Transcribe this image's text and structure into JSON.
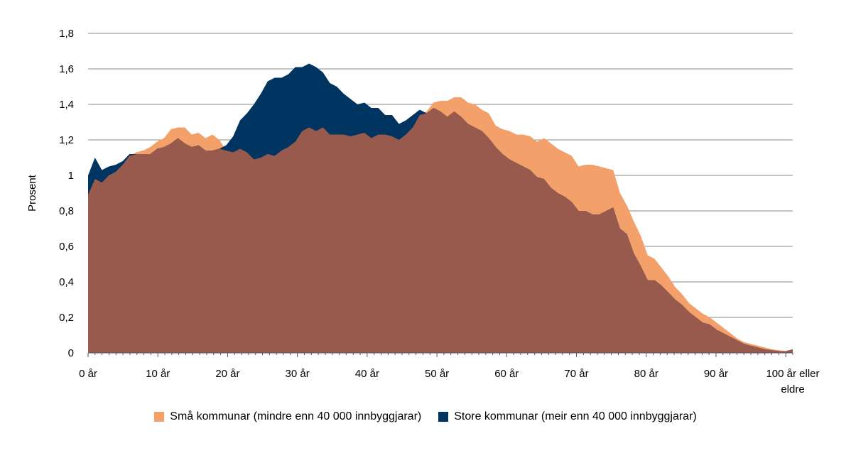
{
  "chart_data": {
    "type": "area",
    "ylabel": "Prosent",
    "xlabel": "",
    "ylim": [
      0,
      1.8
    ],
    "yticks": [
      "0",
      "0,2",
      "0,4",
      "0,6",
      "0,8",
      "1",
      "1,2",
      "1,4",
      "1,6",
      "1,8"
    ],
    "yticks_values": [
      0,
      0.2,
      0.4,
      0.6,
      0.8,
      1.0,
      1.2,
      1.4,
      1.6,
      1.8
    ],
    "xticks": [
      {
        "x": 0,
        "label": "0 år"
      },
      {
        "x": 10,
        "label": "10 år"
      },
      {
        "x": 20,
        "label": "20 år"
      },
      {
        "x": 30,
        "label": "30 år"
      },
      {
        "x": 40,
        "label": "40 år"
      },
      {
        "x": 50,
        "label": "50 år"
      },
      {
        "x": 60,
        "label": "60 år"
      },
      {
        "x": 70,
        "label": "70 år"
      },
      {
        "x": 80,
        "label": "80 år"
      },
      {
        "x": 90,
        "label": "90 år"
      },
      {
        "x": 101,
        "label": "100 år eller eldre"
      }
    ],
    "xlim": [
      0,
      101
    ],
    "grid": true,
    "legend_position": "bottom",
    "colors": {
      "small": "#f4a06a",
      "large": "#003461",
      "overlap": "#975a4c"
    },
    "series": [
      {
        "name": "Små kommunar (mindre enn 40 000 innbyggjarar)",
        "color": "#f4a06a",
        "values": [
          0.89,
          0.98,
          0.96,
          1.0,
          1.02,
          1.06,
          1.11,
          1.13,
          1.14,
          1.16,
          1.19,
          1.21,
          1.26,
          1.27,
          1.27,
          1.23,
          1.24,
          1.21,
          1.23,
          1.2,
          1.14,
          1.13,
          1.15,
          1.13,
          1.09,
          1.1,
          1.12,
          1.11,
          1.14,
          1.16,
          1.19,
          1.25,
          1.27,
          1.25,
          1.27,
          1.23,
          1.23,
          1.23,
          1.22,
          1.23,
          1.24,
          1.21,
          1.23,
          1.23,
          1.22,
          1.2,
          1.23,
          1.27,
          1.34,
          1.36,
          1.41,
          1.42,
          1.42,
          1.44,
          1.44,
          1.41,
          1.4,
          1.37,
          1.35,
          1.28,
          1.26,
          1.25,
          1.23,
          1.23,
          1.22,
          1.19,
          1.21,
          1.18,
          1.15,
          1.13,
          1.11,
          1.05,
          1.06,
          1.06,
          1.05,
          1.04,
          1.03,
          0.9,
          0.83,
          0.74,
          0.66,
          0.55,
          0.53,
          0.48,
          0.43,
          0.37,
          0.33,
          0.28,
          0.25,
          0.22,
          0.2,
          0.17,
          0.14,
          0.11,
          0.08,
          0.06,
          0.05,
          0.04,
          0.03,
          0.02,
          0.015,
          0.01,
          0.02
        ]
      },
      {
        "name": "Store kommunar (meir enn 40 000 innbyggjarar)",
        "color": "#003461",
        "values": [
          1.0,
          1.1,
          1.03,
          1.05,
          1.06,
          1.08,
          1.12,
          1.12,
          1.12,
          1.12,
          1.15,
          1.16,
          1.18,
          1.21,
          1.18,
          1.16,
          1.17,
          1.14,
          1.14,
          1.15,
          1.17,
          1.22,
          1.31,
          1.35,
          1.4,
          1.46,
          1.53,
          1.55,
          1.55,
          1.57,
          1.61,
          1.61,
          1.63,
          1.61,
          1.58,
          1.52,
          1.5,
          1.46,
          1.43,
          1.4,
          1.41,
          1.38,
          1.38,
          1.34,
          1.34,
          1.29,
          1.31,
          1.34,
          1.37,
          1.35,
          1.38,
          1.36,
          1.33,
          1.36,
          1.33,
          1.29,
          1.27,
          1.25,
          1.21,
          1.16,
          1.12,
          1.09,
          1.07,
          1.05,
          1.03,
          0.99,
          0.98,
          0.93,
          0.9,
          0.88,
          0.85,
          0.8,
          0.8,
          0.78,
          0.78,
          0.8,
          0.82,
          0.7,
          0.67,
          0.56,
          0.49,
          0.41,
          0.41,
          0.38,
          0.34,
          0.3,
          0.27,
          0.23,
          0.2,
          0.17,
          0.16,
          0.13,
          0.11,
          0.09,
          0.07,
          0.05,
          0.04,
          0.03,
          0.02,
          0.015,
          0.01,
          0.01,
          0.02
        ]
      }
    ]
  }
}
